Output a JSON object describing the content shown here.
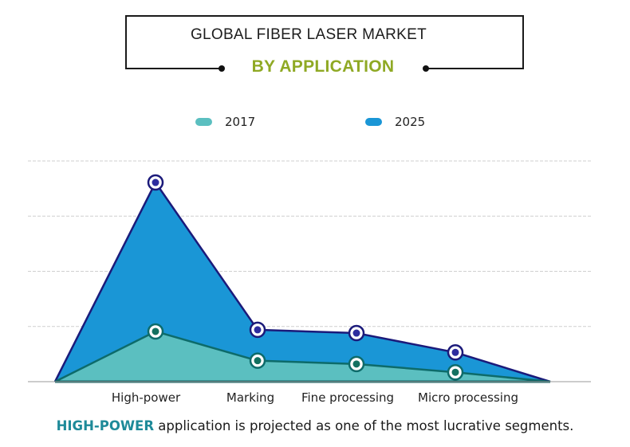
{
  "title": {
    "main": "GLOBAL FIBER LASER MARKET",
    "sub": "BY APPLICATION",
    "sub_color": "#8fa924"
  },
  "legend": [
    {
      "label": "2017",
      "color": "#5bbfc0"
    },
    {
      "label": "2025",
      "color": "#1a96d6"
    }
  ],
  "footer": {
    "highlight": "HIGH-POWER",
    "rest": " application is projected as one of the most lucrative segments.",
    "highlight_color": "#1e8a99"
  },
  "chart_data": {
    "type": "area",
    "title": "Global Fiber Laser Market, By Application",
    "xlabel": "",
    "ylabel": "",
    "categories": [
      "High-power",
      "Marking",
      "Fine processing",
      "Micro processing"
    ],
    "series": [
      {
        "name": "2017",
        "values": [
          0.91,
          0.38,
          0.32,
          0.17
        ],
        "color": "#5bbfc0",
        "line_color": "#0d6b6a"
      },
      {
        "name": "2025",
        "values": [
          3.61,
          0.94,
          0.88,
          0.53
        ],
        "color": "#1a96d6",
        "line_color": "#1b1a7a"
      }
    ],
    "ylim": [
      0,
      4
    ],
    "y_axis_labels_shown": false,
    "grid": "horizontal dashed, 4 lines",
    "legend_position": "top",
    "note": "Values are relative (unlabeled y-axis), estimated from gridline spacing; areas start and end at zero beyond first/last category."
  }
}
